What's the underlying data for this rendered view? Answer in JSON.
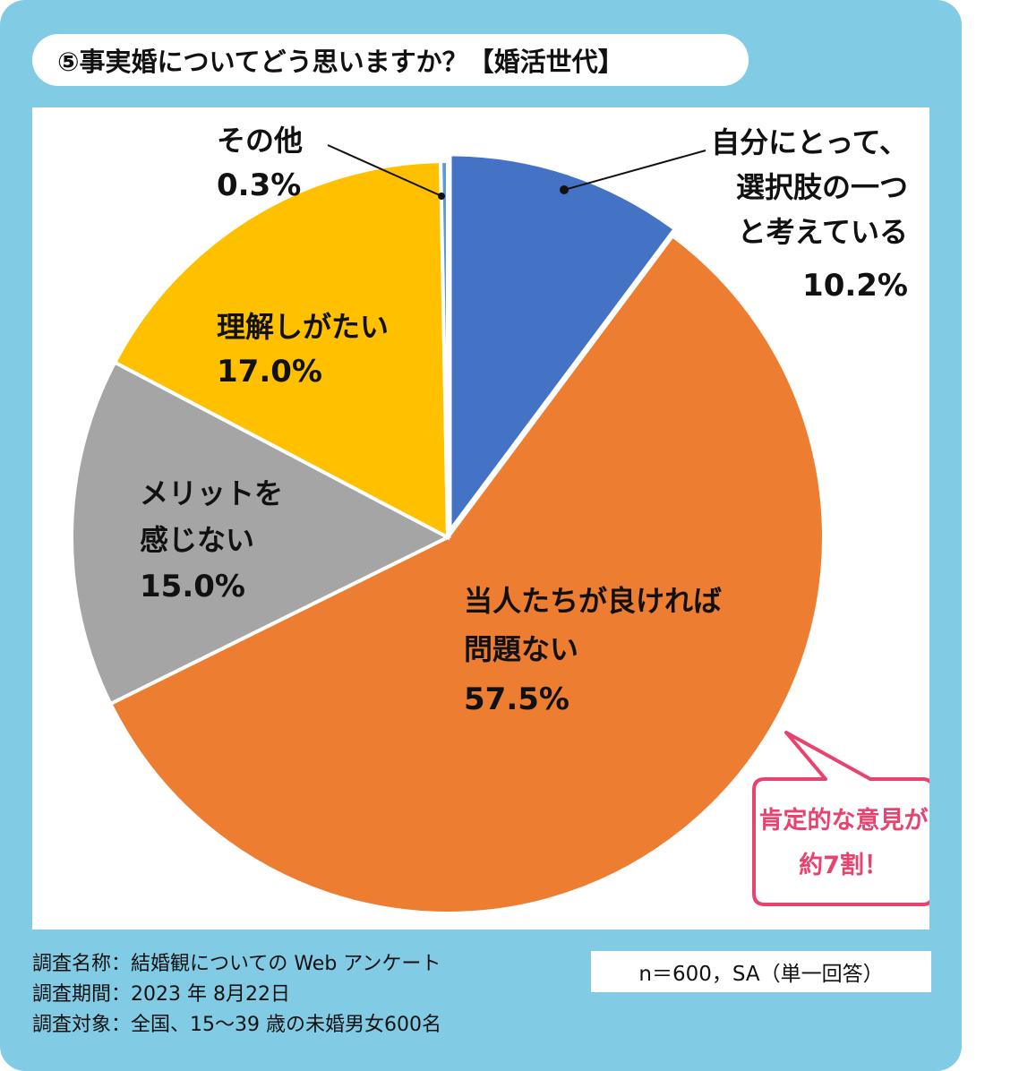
{
  "title": "⑤事実婚についてどう思いますか？【婚活世代】",
  "chart_data": {
    "type": "pie",
    "slices": [
      {
        "label": [
          "自分にとって、",
          "選択肢の一つ",
          "と考えている"
        ],
        "value": 10.2,
        "display": "10.2%",
        "color": "#4472c4"
      },
      {
        "label": [
          "当人たちが良ければ",
          "問題ない"
        ],
        "value": 57.5,
        "display": "57.5%",
        "color": "#ed7d31"
      },
      {
        "label": [
          "メリットを",
          "感じない"
        ],
        "value": 15.0,
        "display": "15.0%",
        "color": "#a5a5a5"
      },
      {
        "label": [
          "理解しがたい"
        ],
        "value": 17.0,
        "display": "17.0%",
        "color": "#ffc000"
      },
      {
        "label": [
          "その他"
        ],
        "value": 0.3,
        "display": "0.3%",
        "color": "#5b9bd5"
      }
    ]
  },
  "callout": {
    "lines": [
      "肯定的な意見が",
      "約7割！"
    ],
    "color": "#e8436f"
  },
  "survey": {
    "name": "調査名称：結婚観についての Web アンケート",
    "period": "調査期間：2023 年 8月22日",
    "target": "調査対象：全国、15～39 歳の未婚男女600名"
  },
  "sample": "n＝600，SA（単一回答）"
}
